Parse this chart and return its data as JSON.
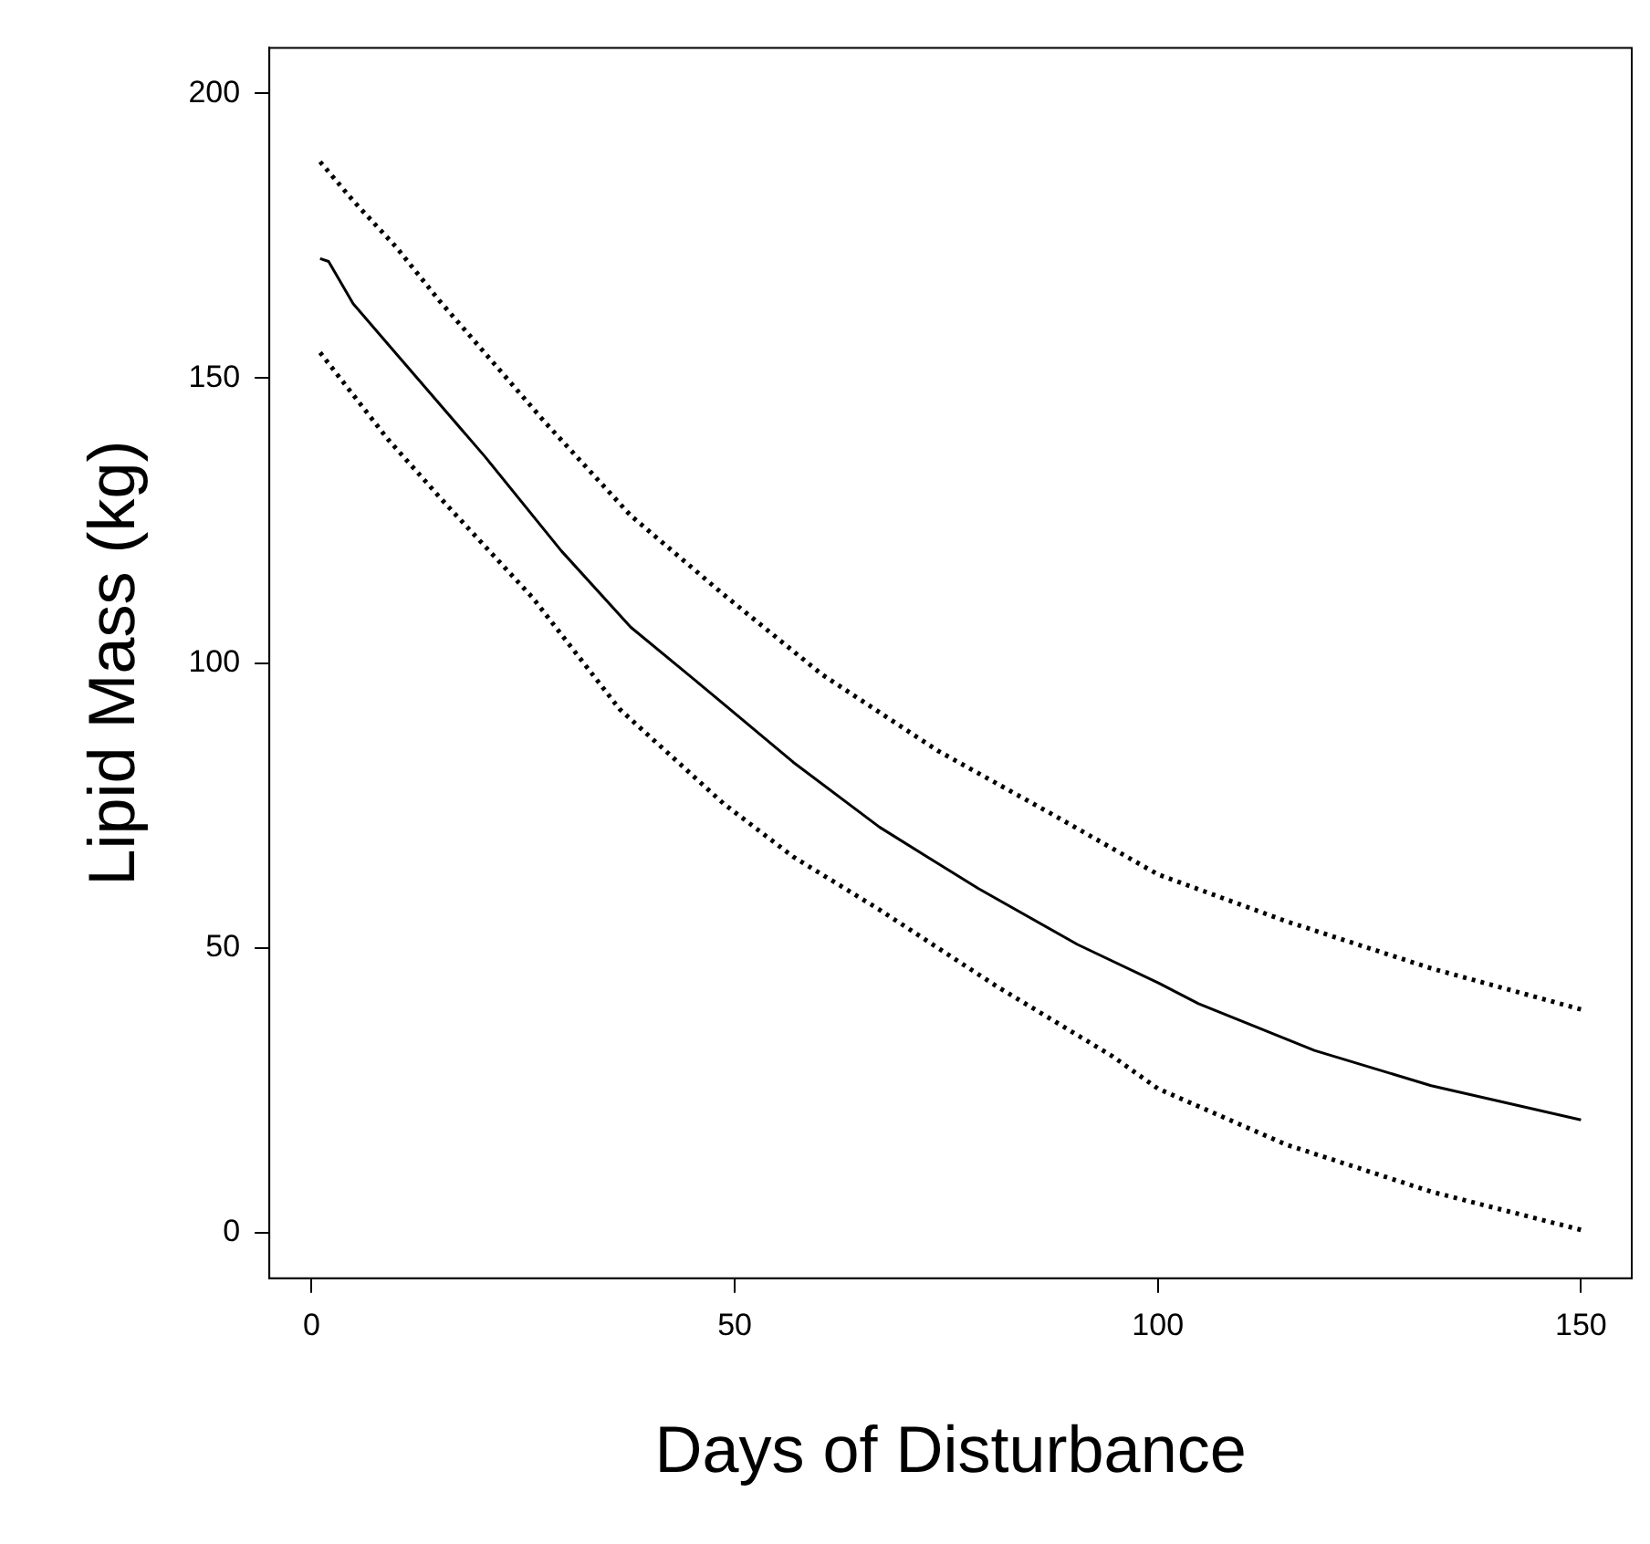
{
  "chart_data": {
    "type": "line",
    "xlabel": "Days of Disturbance",
    "ylabel": "Lipid Mass (kg)",
    "xlim": [
      -5,
      156
    ],
    "ylim": [
      -8,
      208
    ],
    "xticks": [
      0,
      50,
      100,
      150
    ],
    "yticks": [
      0,
      50,
      100,
      150,
      200
    ],
    "grid": false,
    "series": [
      {
        "color": "#000000",
        "line_style": "solid",
        "x": [
          1,
          2,
          4.9,
          9.7,
          20.5,
          29.5,
          37.7,
          46.6,
          56.9,
          67.1,
          78.8,
          90.5,
          100,
          104.8,
          118.5,
          132.3,
          150
        ],
        "values": [
          171,
          170.5,
          163.1,
          154.8,
          136.2,
          119.7,
          106.3,
          95.4,
          82.6,
          71.2,
          60.4,
          50.6,
          43.9,
          40.2,
          32,
          25.8,
          19.8
        ]
      },
      {
        "color": "#000000",
        "line_style": "dotted",
        "x": [
          1,
          5,
          10,
          15.1,
          27.5,
          37.7,
          48.7,
          60.3,
          74,
          87.7,
          100,
          115.1,
          132.3,
          150
        ],
        "values": [
          188,
          181,
          173,
          163.6,
          142.4,
          125.9,
          112,
          98,
          84.6,
          73.3,
          62.9,
          54.7,
          46.4,
          39.2
        ]
      },
      {
        "color": "#000000",
        "line_style": "dotted",
        "x": [
          1,
          9,
          15.8,
          26.1,
          36.4,
          48.7,
          56.9,
          67.1,
          80.9,
          94.6,
          100,
          115.1,
          132.3,
          150
        ],
        "values": [
          154.5,
          139.3,
          128,
          111.5,
          91.9,
          75.3,
          66,
          56.7,
          43.3,
          31,
          25.3,
          15.5,
          7.2,
          0.5
        ]
      }
    ]
  }
}
